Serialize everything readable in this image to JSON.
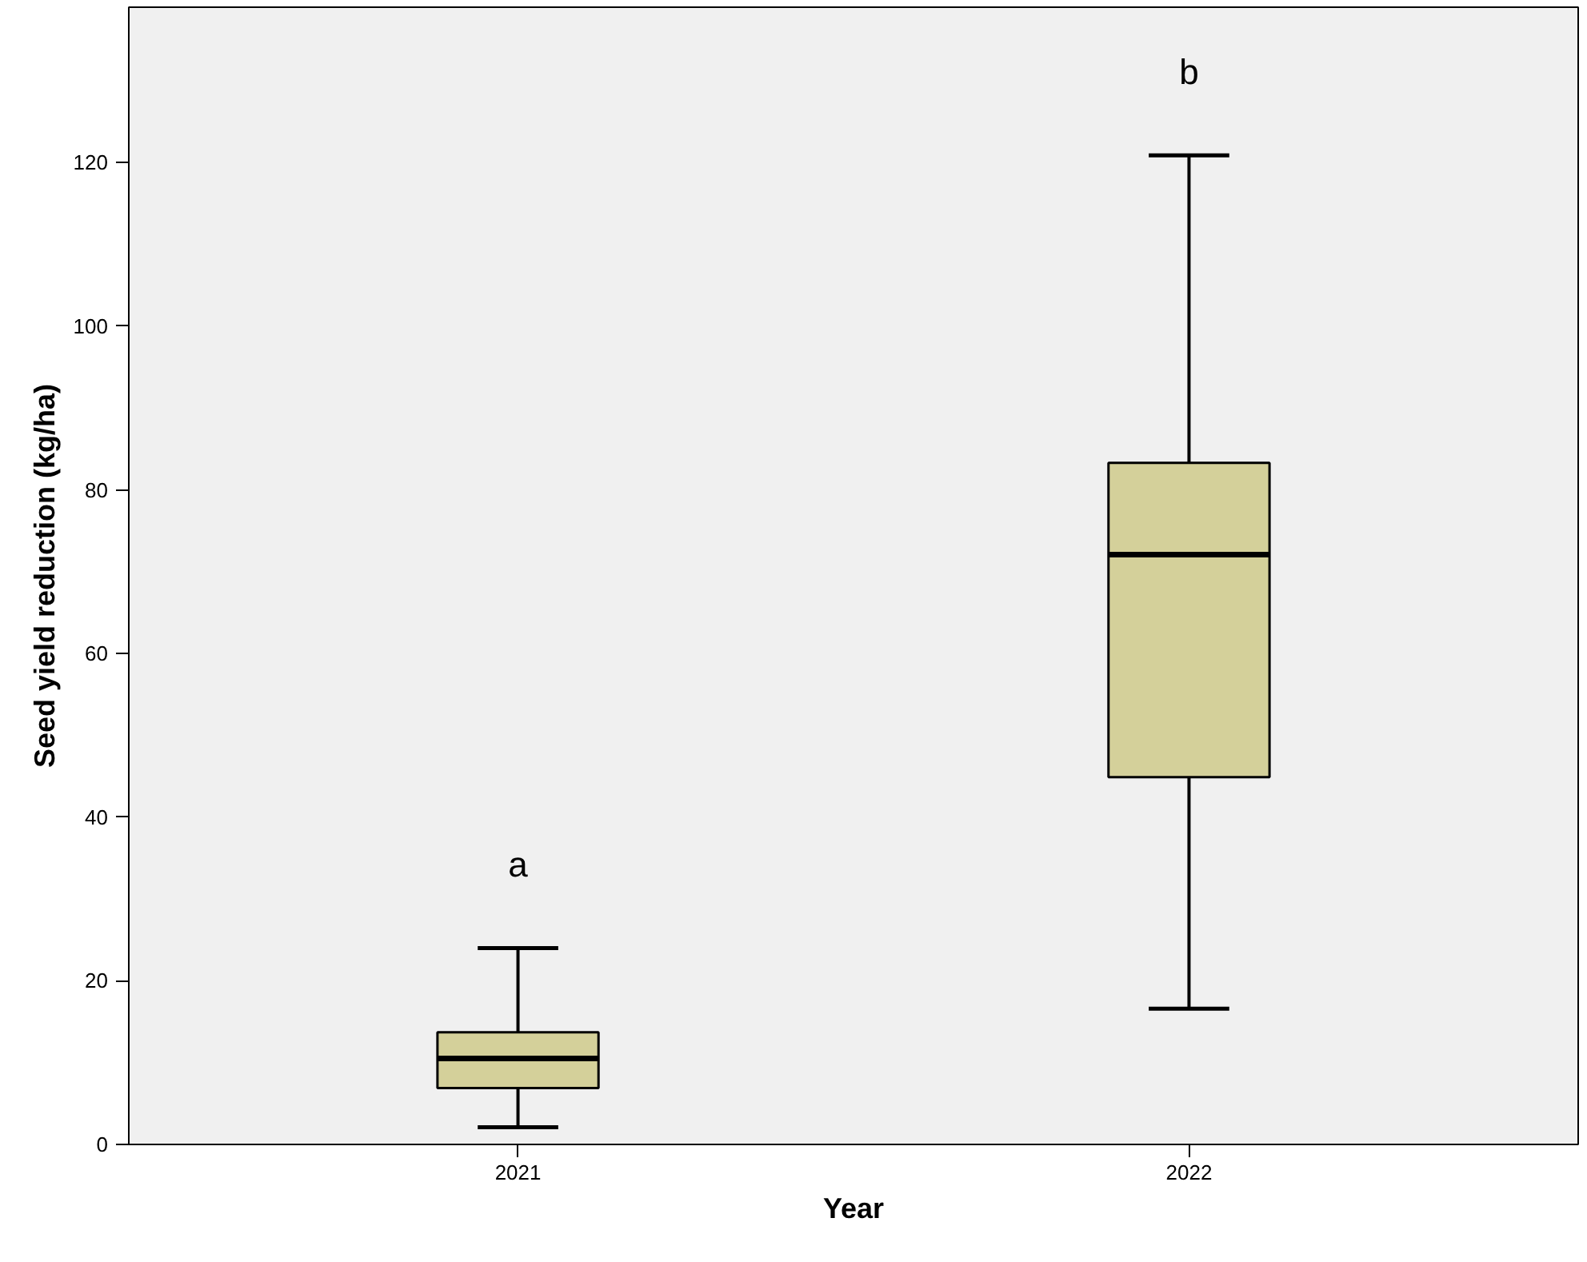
{
  "chart_data": {
    "type": "box",
    "xlabel": "Year",
    "ylabel": "Seed yield reduction (kg/ha)",
    "categories": [
      "2021",
      "2022"
    ],
    "boxes": [
      {
        "low": 2.1,
        "q1": 6.9,
        "median": 10.5,
        "q3": 13.7,
        "high": 24.0
      },
      {
        "low": 16.6,
        "q1": 44.9,
        "median": 72.1,
        "q3": 83.3,
        "high": 120.9
      }
    ],
    "color": "#d4d09a",
    "ylim": [
      0,
      139
    ],
    "yticks": [
      0,
      20,
      40,
      60,
      80,
      100,
      120
    ],
    "grid": false,
    "annotations": [
      "a",
      "b"
    ]
  }
}
